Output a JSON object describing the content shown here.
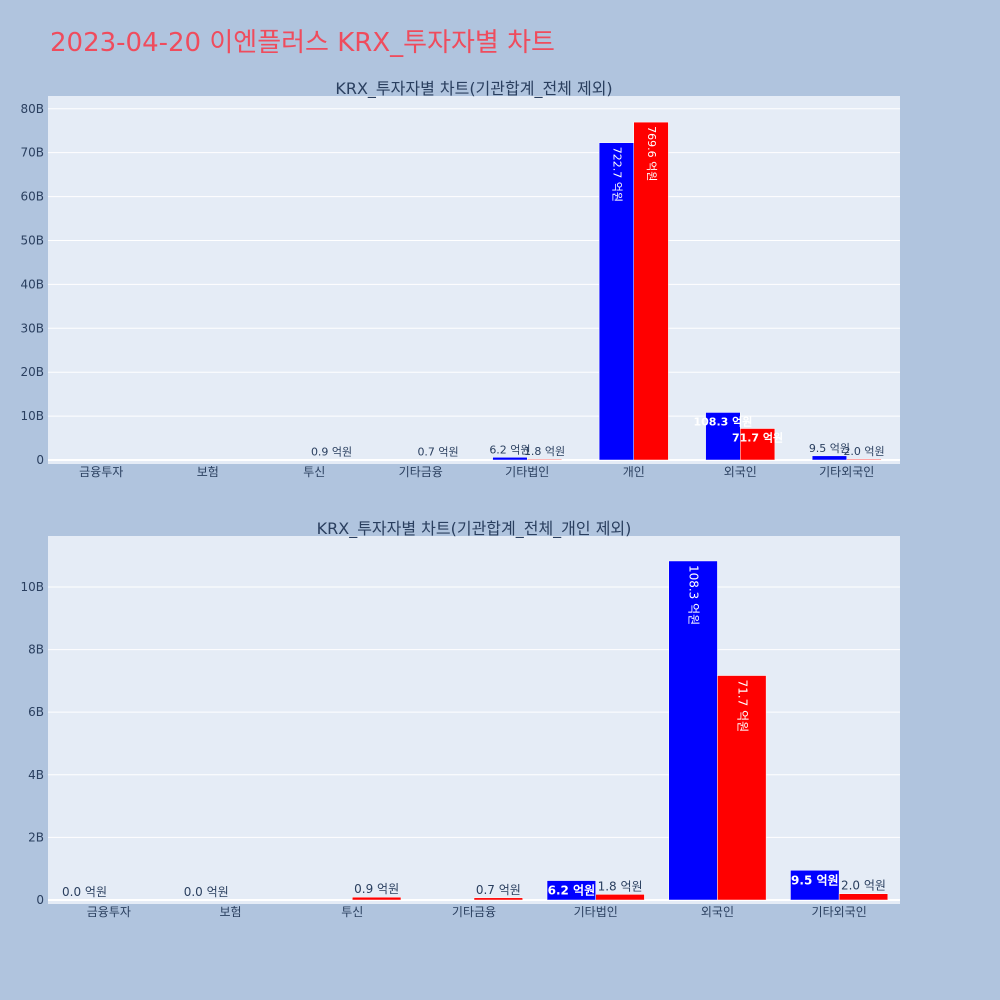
{
  "page_title": "2023-04-20 이엔플러스 KRX_투자자별 차트",
  "colors": {
    "buy": "#0000ff",
    "sell": "#ff0000",
    "plot_bg": "#e5ecf6",
    "page_bg": "#b0c4de",
    "title": "#ef4c5d"
  },
  "chart_data": [
    {
      "type": "bar",
      "title": "KRX_투자자별 차트(기관합계_전체 제외)",
      "categories": [
        "금융투자",
        "보험",
        "투신",
        "기타금융",
        "기타법인",
        "개인",
        "외국인",
        "기타외국인"
      ],
      "series": [
        {
          "values": [
            0,
            0,
            0,
            0,
            0.62,
            72.27,
            10.83,
            0.95
          ],
          "labels": [
            "",
            "",
            "",
            "",
            "6.2 억원",
            "722.7 억원",
            "108.3 억원",
            "9.5 억원"
          ]
        },
        {
          "values": [
            0,
            0,
            0.09,
            0.07,
            0.18,
            76.96,
            7.17,
            0.2
          ],
          "labels": [
            "",
            "",
            "0.9 억원",
            "0.7 억원",
            "1.8 억원",
            "769.6 억원",
            "71.7 억원",
            "2.0 억원"
          ]
        }
      ],
      "ylim": [
        0,
        82
      ],
      "yticks": [
        0,
        10,
        20,
        30,
        40,
        50,
        60,
        70,
        80
      ],
      "ytick_labels": [
        "0",
        "10B",
        "20B",
        "30B",
        "40B",
        "50B",
        "60B",
        "70B",
        "80B"
      ],
      "grid": true,
      "legend": "none"
    },
    {
      "type": "bar",
      "title": "KRX_투자자별 차트(기관합계_전체_개인 제외)",
      "categories": [
        "금융투자",
        "보험",
        "투신",
        "기타금융",
        "기타법인",
        "외국인",
        "기타외국인"
      ],
      "series": [
        {
          "values": [
            0,
            0,
            0,
            0,
            0.62,
            10.83,
            0.95
          ],
          "labels": [
            "0.0 억원",
            "0.0 억원",
            "",
            "",
            "6.2 억원",
            "108.3 억원",
            "9.5 억원"
          ]
        },
        {
          "values": [
            0,
            0,
            0.09,
            0.07,
            0.18,
            7.17,
            0.2
          ],
          "labels": [
            "",
            "",
            "0.9 억원",
            "0.7 억원",
            "1.8 억원",
            "71.7 억원",
            "2.0 억원"
          ]
        }
      ],
      "ylim": [
        0,
        11.5
      ],
      "yticks": [
        0,
        2,
        4,
        6,
        8,
        10
      ],
      "ytick_labels": [
        "0",
        "2B",
        "4B",
        "6B",
        "8B",
        "10B"
      ],
      "grid": true,
      "legend": "none"
    }
  ]
}
